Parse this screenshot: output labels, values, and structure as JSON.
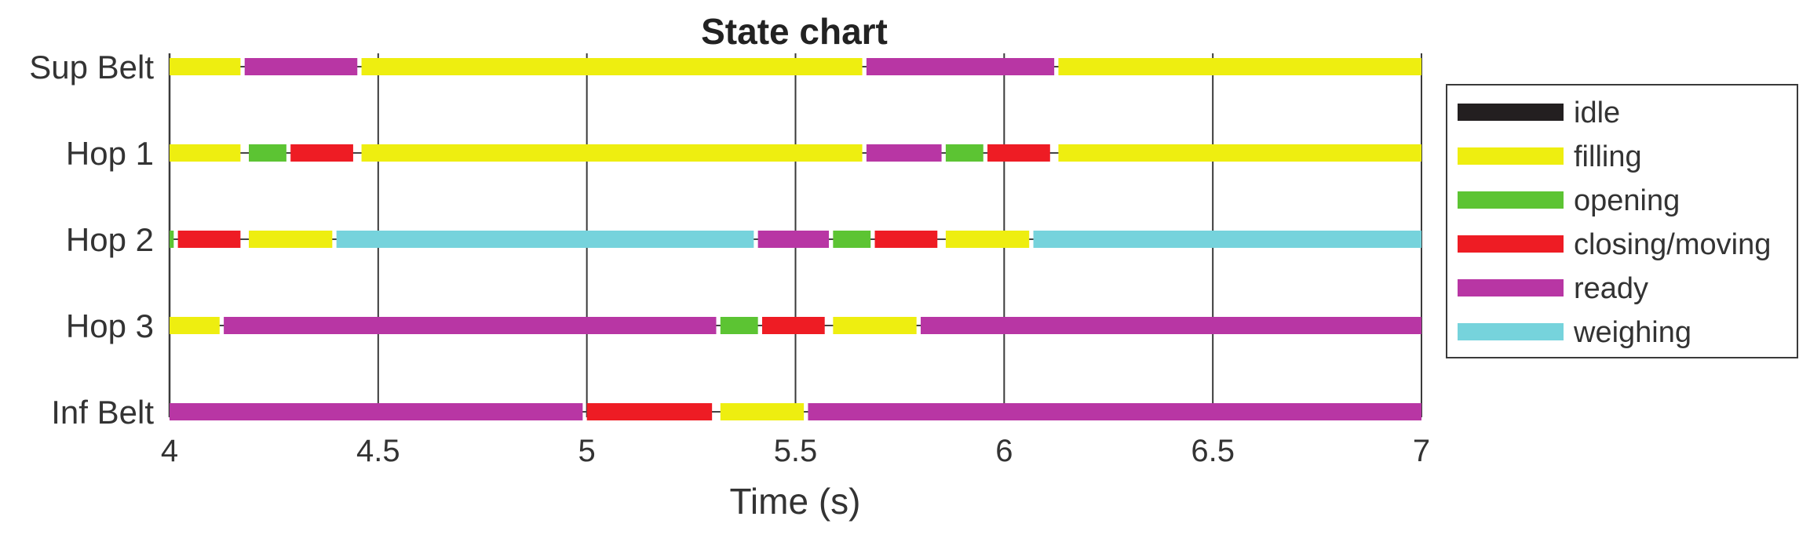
{
  "chart_data": {
    "type": "state-timeline",
    "title": "State chart",
    "xlabel": "Time (s)",
    "ylabel": "",
    "xlim": [
      4,
      7
    ],
    "xticks": [
      4,
      4.5,
      5,
      5.5,
      6,
      6.5,
      7
    ],
    "xtick_labels": [
      "4",
      "4.5",
      "5",
      "5.5",
      "6",
      "6.5",
      "7"
    ],
    "grid": "vertical lines at ticks",
    "legend_position": "right",
    "rows": [
      "Sup Belt",
      "Hop 1",
      "Hop 2",
      "Hop 3",
      "Inf Belt"
    ],
    "states": [
      {
        "name": "idle",
        "color": "#231f20"
      },
      {
        "name": "filling",
        "color": "#eeee10"
      },
      {
        "name": "opening",
        "color": "#5cc433"
      },
      {
        "name": "closing/moving",
        "color": "#ee1c24"
      },
      {
        "name": "ready",
        "color": "#b836a4"
      },
      {
        "name": "weighing",
        "color": "#76d3dc"
      }
    ],
    "segments": [
      {
        "row": "Sup Belt",
        "state": "filling",
        "start": 4.0,
        "end": 4.17
      },
      {
        "row": "Sup Belt",
        "state": "ready",
        "start": 4.18,
        "end": 4.45
      },
      {
        "row": "Sup Belt",
        "state": "filling",
        "start": 4.46,
        "end": 5.66
      },
      {
        "row": "Sup Belt",
        "state": "ready",
        "start": 5.67,
        "end": 6.12
      },
      {
        "row": "Sup Belt",
        "state": "filling",
        "start": 6.13,
        "end": 7.0
      },
      {
        "row": "Hop 1",
        "state": "filling",
        "start": 4.0,
        "end": 4.17
      },
      {
        "row": "Hop 1",
        "state": "opening",
        "start": 4.19,
        "end": 4.28
      },
      {
        "row": "Hop 1",
        "state": "closing/moving",
        "start": 4.29,
        "end": 4.44
      },
      {
        "row": "Hop 1",
        "state": "filling",
        "start": 4.46,
        "end": 5.66
      },
      {
        "row": "Hop 1",
        "state": "ready",
        "start": 5.67,
        "end": 5.85
      },
      {
        "row": "Hop 1",
        "state": "opening",
        "start": 5.86,
        "end": 5.95
      },
      {
        "row": "Hop 1",
        "state": "closing/moving",
        "start": 5.96,
        "end": 6.11
      },
      {
        "row": "Hop 1",
        "state": "filling",
        "start": 6.13,
        "end": 7.0
      },
      {
        "row": "Hop 2",
        "state": "opening",
        "start": 4.0,
        "end": 4.01
      },
      {
        "row": "Hop 2",
        "state": "closing/moving",
        "start": 4.02,
        "end": 4.17
      },
      {
        "row": "Hop 2",
        "state": "filling",
        "start": 4.19,
        "end": 4.39
      },
      {
        "row": "Hop 2",
        "state": "weighing",
        "start": 4.4,
        "end": 5.4
      },
      {
        "row": "Hop 2",
        "state": "ready",
        "start": 5.41,
        "end": 5.58
      },
      {
        "row": "Hop 2",
        "state": "opening",
        "start": 5.59,
        "end": 5.68
      },
      {
        "row": "Hop 2",
        "state": "closing/moving",
        "start": 5.69,
        "end": 5.84
      },
      {
        "row": "Hop 2",
        "state": "filling",
        "start": 5.86,
        "end": 6.06
      },
      {
        "row": "Hop 2",
        "state": "weighing",
        "start": 6.07,
        "end": 7.0
      },
      {
        "row": "Hop 3",
        "state": "filling",
        "start": 4.0,
        "end": 4.12
      },
      {
        "row": "Hop 3",
        "state": "ready",
        "start": 4.13,
        "end": 5.31
      },
      {
        "row": "Hop 3",
        "state": "opening",
        "start": 5.32,
        "end": 5.41
      },
      {
        "row": "Hop 3",
        "state": "closing/moving",
        "start": 5.42,
        "end": 5.57
      },
      {
        "row": "Hop 3",
        "state": "filling",
        "start": 5.59,
        "end": 5.79
      },
      {
        "row": "Hop 3",
        "state": "ready",
        "start": 5.8,
        "end": 7.0
      },
      {
        "row": "Inf Belt",
        "state": "ready",
        "start": 4.0,
        "end": 4.99
      },
      {
        "row": "Inf Belt",
        "state": "closing/moving",
        "start": 5.0,
        "end": 5.3
      },
      {
        "row": "Inf Belt",
        "state": "filling",
        "start": 5.32,
        "end": 5.52
      },
      {
        "row": "Inf Belt",
        "state": "ready",
        "start": 5.53,
        "end": 7.0
      }
    ]
  }
}
